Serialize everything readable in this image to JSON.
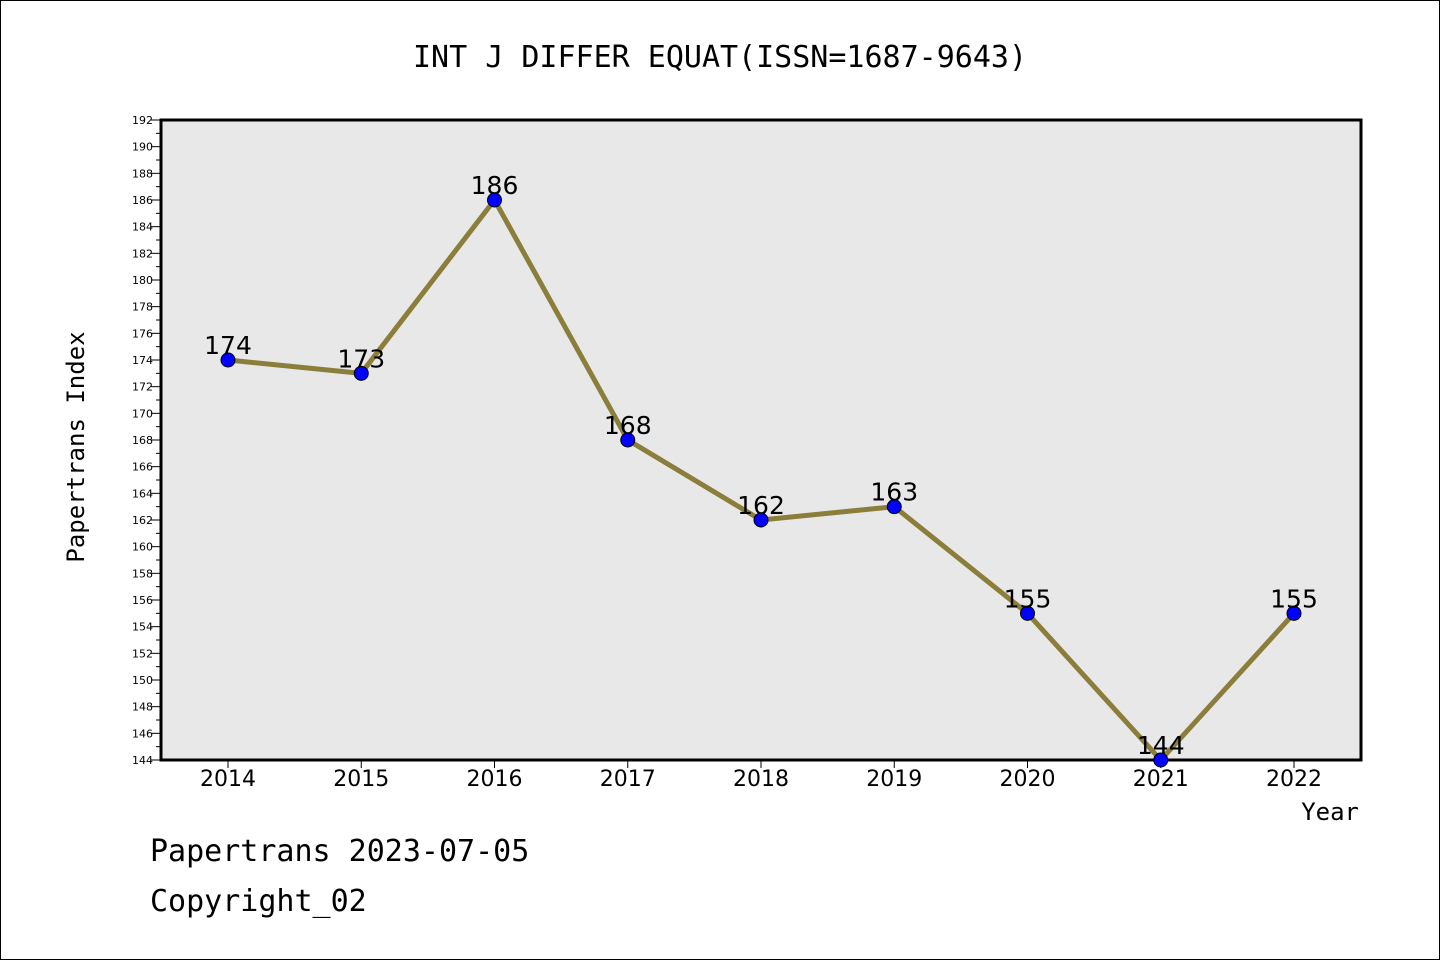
{
  "chart_data": {
    "type": "line",
    "title": "INT J DIFFER EQUAT(ISSN=1687-9643)",
    "xlabel": "Year",
    "ylabel": "Papertrans Index",
    "categories": [
      "2014",
      "2015",
      "2016",
      "2017",
      "2018",
      "2019",
      "2020",
      "2021",
      "2022"
    ],
    "values": [
      174,
      173,
      186,
      168,
      162,
      163,
      155,
      144,
      155
    ],
    "ylim": [
      144,
      192
    ],
    "ytick_step": 2,
    "grid": false,
    "legend": "none",
    "colors": {
      "line": "#8b7d3a",
      "marker": "#0000ff",
      "plot_background": "#e8e8e8"
    }
  },
  "footer": {
    "line1": "Papertrans 2023-07-05",
    "line2": "Copyright_02"
  }
}
